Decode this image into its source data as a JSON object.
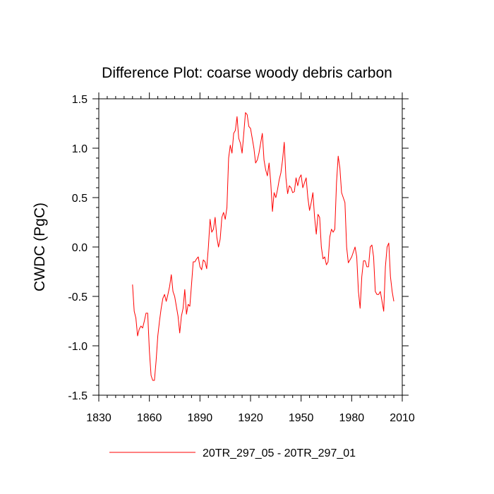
{
  "chart_data": {
    "type": "line",
    "title": "Difference Plot: coarse woody debris carbon",
    "xlabel": "",
    "ylabel": "CWDC  (PgC)",
    "xlim": [
      1830,
      2010
    ],
    "ylim": [
      -1.5,
      1.5
    ],
    "x_ticks": [
      1830,
      1860,
      1890,
      1920,
      1950,
      1980,
      2010
    ],
    "x_tick_labels": [
      "1830",
      "1860",
      "1890",
      "1920",
      "1950",
      "1980",
      "2010"
    ],
    "y_ticks": [
      -1.5,
      -1.0,
      -0.5,
      0.0,
      0.5,
      1.0,
      1.5
    ],
    "y_tick_labels": [
      "-1.5",
      "-1.0",
      "-0.5",
      "0.0",
      "0.5",
      "1.0",
      "1.5"
    ],
    "grid": false,
    "legend_position": "bottom",
    "series": [
      {
        "name": "20TR_297_05 - 20TR_297_01",
        "color": "#ff0000",
        "x": [
          1850,
          1851,
          1852,
          1853,
          1854,
          1855,
          1856,
          1857,
          1858,
          1859,
          1860,
          1861,
          1862,
          1863,
          1864,
          1865,
          1866,
          1867,
          1868,
          1869,
          1870,
          1871,
          1872,
          1873,
          1874,
          1875,
          1876,
          1877,
          1878,
          1879,
          1880,
          1881,
          1882,
          1883,
          1884,
          1885,
          1886,
          1887,
          1888,
          1889,
          1890,
          1891,
          1892,
          1893,
          1894,
          1895,
          1896,
          1897,
          1898,
          1899,
          1900,
          1901,
          1902,
          1903,
          1904,
          1905,
          1906,
          1907,
          1908,
          1909,
          1910,
          1911,
          1912,
          1913,
          1914,
          1915,
          1916,
          1917,
          1918,
          1919,
          1920,
          1921,
          1922,
          1923,
          1924,
          1925,
          1926,
          1927,
          1928,
          1929,
          1930,
          1931,
          1932,
          1933,
          1934,
          1935,
          1936,
          1937,
          1938,
          1939,
          1940,
          1941,
          1942,
          1943,
          1944,
          1945,
          1946,
          1947,
          1948,
          1949,
          1950,
          1951,
          1952,
          1953,
          1954,
          1955,
          1956,
          1957,
          1958,
          1959,
          1960,
          1961,
          1962,
          1963,
          1964,
          1965,
          1966,
          1967,
          1968,
          1969,
          1970,
          1971,
          1972,
          1973,
          1974,
          1975,
          1976,
          1977,
          1978,
          1979,
          1980,
          1981,
          1982,
          1983,
          1984,
          1985,
          1986,
          1987,
          1988,
          1989,
          1990,
          1991,
          1992,
          1993,
          1994,
          1995,
          1996,
          1997,
          1998,
          1999,
          2000,
          2001,
          2002,
          2003,
          2004,
          2005
        ],
        "values": [
          -0.38,
          -0.65,
          -0.72,
          -0.9,
          -0.83,
          -0.8,
          -0.82,
          -0.75,
          -0.67,
          -0.67,
          -1.05,
          -1.3,
          -1.35,
          -1.35,
          -1.15,
          -0.9,
          -0.75,
          -0.62,
          -0.52,
          -0.48,
          -0.55,
          -0.48,
          -0.4,
          -0.28,
          -0.45,
          -0.5,
          -0.6,
          -0.7,
          -0.87,
          -0.7,
          -0.62,
          -0.43,
          -0.68,
          -0.58,
          -0.6,
          -0.38,
          -0.15,
          -0.15,
          -0.12,
          -0.1,
          -0.2,
          -0.23,
          -0.13,
          -0.15,
          -0.22,
          0.0,
          0.28,
          0.15,
          0.18,
          0.3,
          0.1,
          0.0,
          0.08,
          0.3,
          0.35,
          0.28,
          0.4,
          0.9,
          1.03,
          0.95,
          1.15,
          1.18,
          1.32,
          1.1,
          1.05,
          0.95,
          1.15,
          1.36,
          1.34,
          1.22,
          1.2,
          1.1,
          1.0,
          0.85,
          0.88,
          0.95,
          1.05,
          1.15,
          0.88,
          0.78,
          0.72,
          0.85,
          0.65,
          0.36,
          0.55,
          0.5,
          0.58,
          0.68,
          0.75,
          0.88,
          1.06,
          0.7,
          0.54,
          0.62,
          0.6,
          0.55,
          0.56,
          0.7,
          0.62,
          0.7,
          0.73,
          0.6,
          0.65,
          0.7,
          0.5,
          0.37,
          0.45,
          0.55,
          0.3,
          0.13,
          0.33,
          0.3,
          0.0,
          -0.12,
          -0.1,
          -0.18,
          -0.15,
          0.1,
          0.18,
          0.15,
          0.18,
          0.65,
          0.92,
          0.8,
          0.55,
          0.5,
          0.45,
          0.0,
          -0.16,
          -0.13,
          -0.1,
          -0.05,
          0.0,
          -0.1,
          -0.45,
          -0.62,
          -0.3,
          -0.14,
          -0.14,
          -0.2,
          -0.2,
          0.0,
          0.02,
          -0.1,
          -0.45,
          -0.48,
          -0.48,
          -0.45,
          -0.55,
          -0.65,
          -0.2,
          0.0,
          0.04,
          -0.3,
          -0.45,
          -0.55
        ]
      }
    ]
  }
}
